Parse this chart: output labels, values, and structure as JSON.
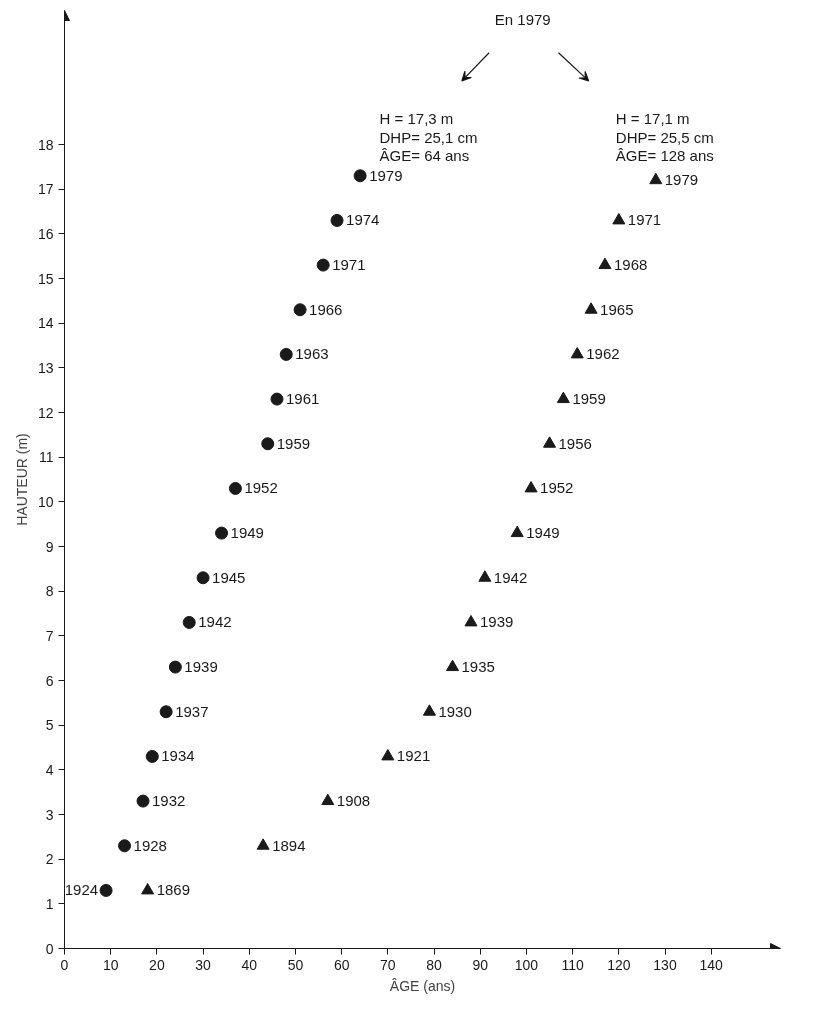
{
  "chart_data": {
    "type": "scatter",
    "xlabel": "ÂGE (ans)",
    "ylabel": "HAUTEUR (m)",
    "xlim": [
      0,
      155
    ],
    "ylim": [
      0,
      21
    ],
    "xticks": [
      0,
      10,
      20,
      30,
      40,
      50,
      60,
      70,
      80,
      90,
      100,
      110,
      120,
      130,
      140
    ],
    "yticks": [
      0,
      1,
      2,
      3,
      4,
      5,
      6,
      7,
      8,
      9,
      10,
      11,
      12,
      13,
      14,
      15,
      16,
      17,
      18
    ],
    "grid": false,
    "annotations": [
      "En 1979",
      "H   = 17,3 m",
      "DHP= 25,1 cm",
      "ÂGE= 64 ans",
      "H   = 17,1 m",
      "DHP= 25,5 cm",
      "ÂGE= 128 ans",
      {
        "text": "1924",
        "x": 9,
        "y": 1.3
      },
      {
        "text": "1928",
        "x": 13,
        "y": 2.3
      },
      {
        "text": "1932",
        "x": 17,
        "y": 3.3
      },
      {
        "text": "1934",
        "x": 19,
        "y": 4.3
      },
      {
        "text": "1937",
        "x": 22,
        "y": 5.3
      },
      {
        "text": "1939",
        "x": 24,
        "y": 6.3
      },
      {
        "text": "1942",
        "x": 27,
        "y": 7.3
      },
      {
        "text": "1945",
        "x": 30,
        "y": 8.3
      },
      {
        "text": "1949",
        "x": 34,
        "y": 9.3
      },
      {
        "text": "1952",
        "x": 37,
        "y": 10.3
      },
      {
        "text": "1959",
        "x": 44,
        "y": 11.3
      },
      {
        "text": "1961",
        "x": 46,
        "y": 12.3
      },
      {
        "text": "1963",
        "x": 48,
        "y": 13.3
      },
      {
        "text": "1966",
        "x": 51,
        "y": 14.3
      },
      {
        "text": "1971",
        "x": 56,
        "y": 15.3
      },
      {
        "text": "1974",
        "x": 59,
        "y": 16.3
      },
      {
        "text": "1979",
        "x": 64,
        "y": 17.3
      },
      {
        "text": "1869",
        "x": 18,
        "y": 1.3
      },
      {
        "text": "1894",
        "x": 43,
        "y": 2.3
      },
      {
        "text": "1908",
        "x": 57,
        "y": 3.3
      },
      {
        "text": "1921",
        "x": 70,
        "y": 4.3
      },
      {
        "text": "1930",
        "x": 79,
        "y": 5.3
      },
      {
        "text": "1935",
        "x": 84,
        "y": 6.3
      },
      {
        "text": "1939",
        "x": 88,
        "y": 7.3
      },
      {
        "text": "1942",
        "x": 91,
        "y": 8.3
      },
      {
        "text": "1949",
        "x": 98,
        "y": 9.3
      },
      {
        "text": "1952",
        "x": 101,
        "y": 10.3
      },
      {
        "text": "1956",
        "x": 105,
        "y": 11.3
      },
      {
        "text": "1959",
        "x": 108,
        "y": 12.3
      },
      {
        "text": "1962",
        "x": 111,
        "y": 13.3
      },
      {
        "text": "1965",
        "x": 114,
        "y": 14.3
      },
      {
        "text": "1968",
        "x": 117,
        "y": 15.3
      },
      {
        "text": "1971",
        "x": 120,
        "y": 16.3
      },
      {
        "text": "1979",
        "x": 128,
        "y": 17.2
      }
    ],
    "series": [
      {
        "color": "#1a1a1a",
        "marker": "circle",
        "x": [
          9,
          13,
          17,
          19,
          22,
          24,
          27,
          30,
          34,
          37,
          44,
          46,
          48,
          51,
          56,
          59,
          64
        ],
        "values": [
          1.3,
          2.3,
          3.3,
          4.3,
          5.3,
          6.3,
          7.3,
          8.3,
          9.3,
          10.3,
          11.3,
          12.3,
          13.3,
          14.3,
          15.3,
          16.3,
          17.3
        ]
      },
      {
        "color": "#1a1a1a",
        "marker": "triangle",
        "x": [
          18,
          43,
          57,
          70,
          79,
          84,
          88,
          91,
          98,
          101,
          105,
          108,
          111,
          114,
          117,
          120,
          128
        ],
        "values": [
          1.3,
          2.3,
          3.3,
          4.3,
          5.3,
          6.3,
          7.3,
          8.3,
          9.3,
          10.3,
          11.3,
          12.3,
          13.3,
          14.3,
          15.3,
          16.3,
          17.2
        ]
      }
    ]
  }
}
